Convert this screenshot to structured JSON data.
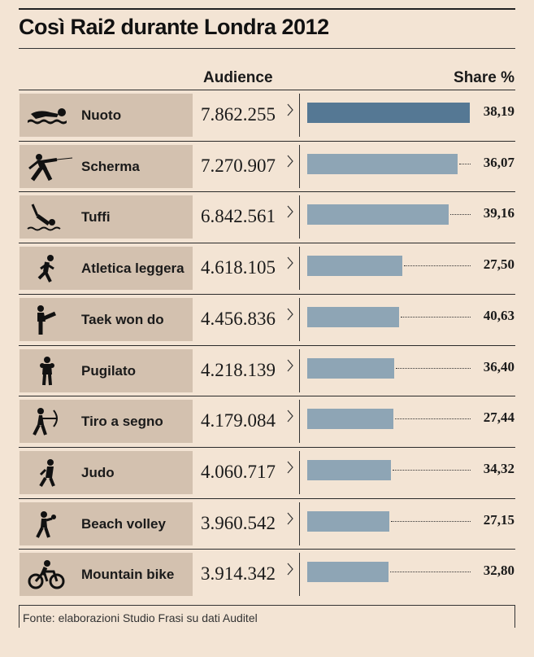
{
  "title": "Così Rai2 durante Londra 2012",
  "headers": {
    "audience": "Audience",
    "share": "Share %"
  },
  "source": "Fonte: elaborazioni Studio Frasi su dati Auditel",
  "colors": {
    "bar_first": "#557894",
    "bar": "#8ea5b5",
    "label_bg": "#d3c1af",
    "background": "#f3e4d4"
  },
  "chart_data": {
    "type": "bar",
    "orientation": "horizontal",
    "title": "Così Rai2 durante Londra 2012",
    "categories": [
      "Nuoto",
      "Scherma",
      "Tuffi",
      "Atletica leggera",
      "Taek won do",
      "Pugilato",
      "Tiro a segno",
      "Judo",
      "Beach volley",
      "Mountain bike"
    ],
    "icons": [
      "swimmer-icon",
      "fencer-icon",
      "diver-icon",
      "runner-icon",
      "taekwondo-icon",
      "boxer-icon",
      "archer-icon",
      "judo-icon",
      "volleyball-icon",
      "cyclist-icon"
    ],
    "audience_labels": [
      "7.862.255",
      "7.270.907",
      "6.842.561",
      "4.618.105",
      "4.456.836",
      "4.218.139",
      "4.179.084",
      "4.060.717",
      "3.960.542",
      "3.914.342"
    ],
    "series": [
      {
        "name": "Audience",
        "values": [
          7862255,
          7270907,
          6842561,
          4618105,
          4456836,
          4218139,
          4179084,
          4060717,
          3960542,
          3914342
        ]
      },
      {
        "name": "Share %",
        "values": [
          38.19,
          36.07,
          39.16,
          27.5,
          40.63,
          36.4,
          27.44,
          34.32,
          27.15,
          32.8
        ]
      }
    ],
    "share_labels": [
      "38,19",
      "36,07",
      "39,16",
      "27,50",
      "40,63",
      "36,40",
      "27,44",
      "34,32",
      "27,15",
      "32,80"
    ]
  }
}
